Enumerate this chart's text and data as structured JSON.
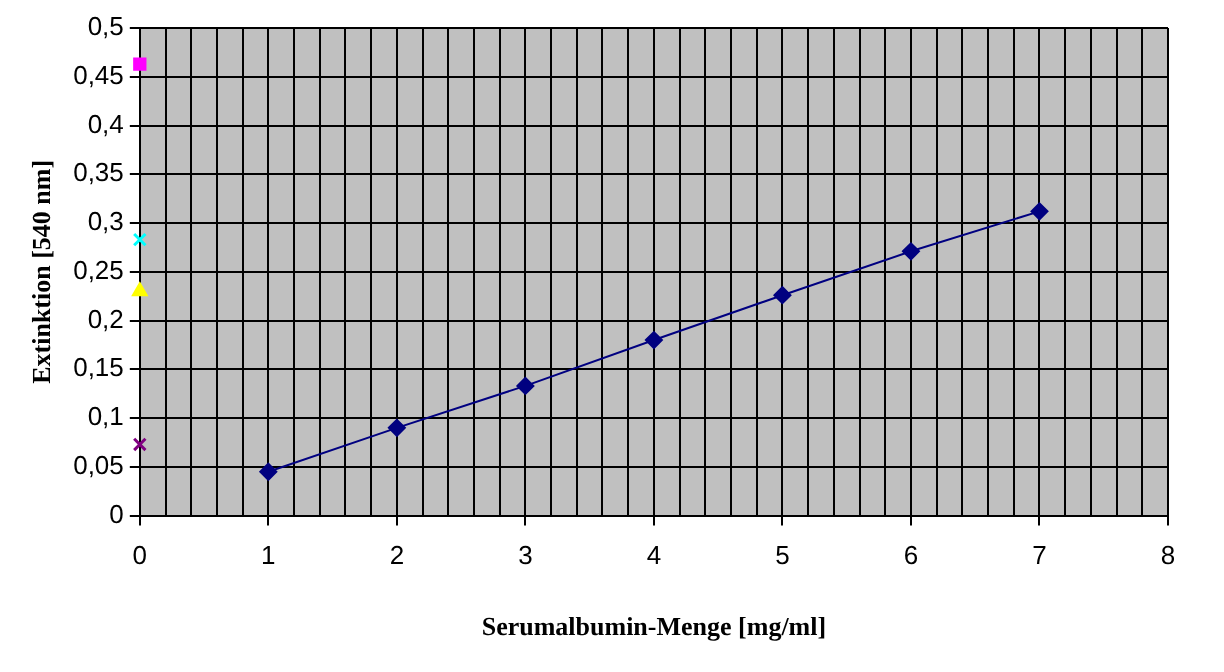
{
  "chart_data": {
    "type": "scatter",
    "xlabel": "Serumalbumin-Menge [mg/ml]",
    "ylabel": "Extinktion [540 nm]",
    "xlim": [
      0,
      8
    ],
    "ylim": [
      0,
      0.5
    ],
    "xticks": [
      0,
      {
        "value": 0.2,
        "label": null
      },
      {
        "value": 0.4,
        "label": null
      },
      {
        "value": 0.6,
        "label": null
      },
      {
        "value": 0.8,
        "label": null
      },
      1,
      {
        "value": 1.2,
        "label": null
      },
      {
        "value": 1.4,
        "label": null
      },
      {
        "value": 1.6,
        "label": null
      },
      {
        "value": 1.8,
        "label": null
      },
      2,
      {
        "value": 2.2,
        "label": null
      },
      {
        "value": 2.4,
        "label": null
      },
      {
        "value": 2.6,
        "label": null
      },
      {
        "value": 2.8,
        "label": null
      },
      3,
      {
        "value": 3.2,
        "label": null
      },
      {
        "value": 3.4,
        "label": null
      },
      {
        "value": 3.6,
        "label": null
      },
      {
        "value": 3.8,
        "label": null
      },
      4,
      {
        "value": 4.2,
        "label": null
      },
      {
        "value": 4.4,
        "label": null
      },
      {
        "value": 4.6,
        "label": null
      },
      {
        "value": 4.8,
        "label": null
      },
      5,
      {
        "value": 5.2,
        "label": null
      },
      {
        "value": 5.4,
        "label": null
      },
      {
        "value": 5.6,
        "label": null
      },
      {
        "value": 5.8,
        "label": null
      },
      6,
      {
        "value": 6.2,
        "label": null
      },
      {
        "value": 6.4,
        "label": null
      },
      {
        "value": 6.6,
        "label": null
      },
      {
        "value": 6.8,
        "label": null
      },
      7,
      {
        "value": 7.2,
        "label": null
      },
      {
        "value": 7.4,
        "label": null
      },
      {
        "value": 7.6,
        "label": null
      },
      {
        "value": 7.8,
        "label": null
      },
      8
    ],
    "yticks": [
      0,
      {
        "value": 0.05,
        "label": "0,05"
      },
      {
        "value": 0.1,
        "label": "0,1"
      },
      {
        "value": 0.15,
        "label": "0,15"
      },
      {
        "value": 0.2,
        "label": "0,2"
      },
      {
        "value": 0.25,
        "label": "0,25"
      },
      {
        "value": 0.3,
        "label": "0,3"
      },
      {
        "value": 0.35,
        "label": "0,35"
      },
      {
        "value": 0.4,
        "label": "0,4"
      },
      {
        "value": 0.45,
        "label": "0,45"
      },
      {
        "value": 0.5,
        "label": "0,5"
      }
    ],
    "grid": true,
    "legend": false,
    "series": [
      {
        "type": "line",
        "color": "#000080",
        "marker": "diamond",
        "line_style": "solid",
        "x": [
          1,
          2,
          3,
          4,
          5,
          6,
          7
        ],
        "values": [
          0.045,
          0.09,
          0.133,
          0.18,
          0.226,
          0.271,
          0.312
        ]
      },
      {
        "color": "#ff00ff",
        "marker": "square",
        "x": [
          0
        ],
        "values": [
          0.463
        ]
      },
      {
        "color": "#00ffff",
        "marker": "cross",
        "x": [
          0
        ],
        "values": [
          0.283
        ]
      },
      {
        "color": "#ffff00",
        "marker": "triangle",
        "x": [
          0
        ],
        "values": [
          0.23
        ]
      },
      {
        "color": "#800080",
        "marker": "cross",
        "x": [
          0
        ],
        "values": [
          0.073
        ]
      }
    ]
  }
}
